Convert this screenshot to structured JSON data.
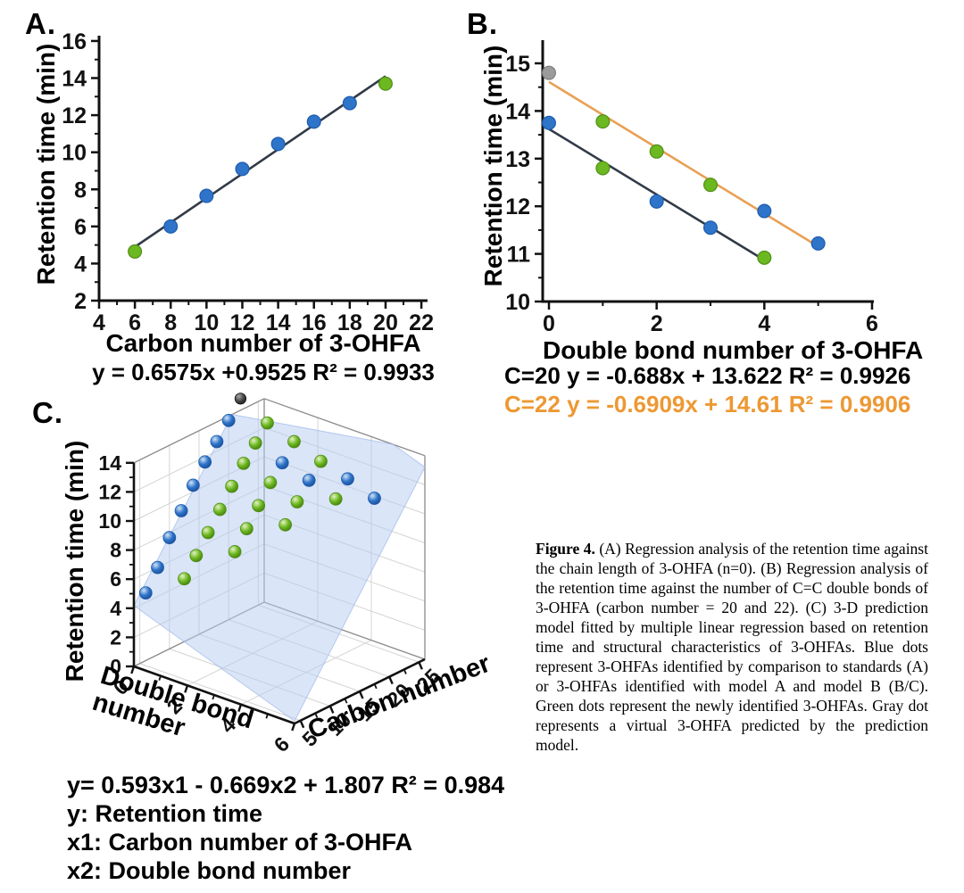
{
  "colors": {
    "blue": "#2E74C9",
    "blue_stroke": "#1D5CAD",
    "green": "#6CB820",
    "green_stroke": "#4F8F15",
    "gray": "#9B9B9B",
    "gray_stroke": "#7F7F7F",
    "orange": "#ED9833",
    "orange_line": "#E9A054",
    "line": "#323A48",
    "axis": "#111111",
    "grid": "#D4D4D4",
    "frame": "#8A8A8A",
    "plane": "#B8CDF2",
    "plane_edge": "#9DB8E8",
    "dark": "#3A3A3A"
  },
  "panels": {
    "a": {
      "label": "A.",
      "ylabel": "Retention time (min)",
      "xlabel": "Carbon number of 3-OHFA",
      "equation": "y = 0.6575x +0.9525   R² = 0.9933"
    },
    "b": {
      "label": "B.",
      "ylabel": "Retention time (min)",
      "xlabel": "Double bond number of 3-OHFA",
      "equation_c20": "C=20 y = -0.688x + 13.622   R² = 0.9926",
      "equation_c22": "C=22 y = -0.6909x + 14.61   R² = 0.9906"
    },
    "c": {
      "label": "C.",
      "zlabel": "Retention time (min)",
      "xlabel_line1": "Double bond",
      "xlabel_line2": "number",
      "ylabel": "Carbon number",
      "equation": "y= 0.593x1 - 0.669x2 + 1.807  R² = 0.984",
      "legend_y": "y: Retention time",
      "legend_x1": "x1: Carbon number of 3-OHFA",
      "legend_x2": "x2: Double bond number"
    }
  },
  "caption": {
    "lead": "Figure 4.",
    "body": " (A) Regression analysis of the retention time against the chain length of 3-OHFA (n=0). (B) Regression analysis of the retention time against the number of C=C double bonds of 3-OHFA (carbon number = 20 and 22). (C) 3-D prediction model fitted by multiple linear regression based on retention time and structural characteristics of 3-OHFAs. Blue dots represent 3-OHFAs identified by comparison to standards (A) or 3-OHFAs identified with model A and model B (B/C). Green dots represent the newly identified 3-OHFAs. Gray dot represents a virtual 3-OHFA predicted by the prediction model."
  },
  "chart_data": [
    {
      "id": "A",
      "type": "scatter",
      "title": "",
      "xlabel": "Carbon number of 3-OHFA",
      "ylabel": "Retention time (min)",
      "xlim": [
        4,
        22
      ],
      "ylim": [
        2,
        16
      ],
      "xticks": [
        4,
        6,
        8,
        10,
        12,
        14,
        16,
        18,
        20,
        22
      ],
      "xticks_minor": [
        5,
        7,
        9,
        11,
        13,
        15,
        17,
        19,
        21
      ],
      "yticks": [
        2,
        4,
        6,
        8,
        10,
        12,
        14,
        16
      ],
      "yticks_minor": [
        3,
        5,
        7,
        9,
        11,
        13,
        15
      ],
      "points": [
        {
          "x": 6,
          "y": 4.65,
          "color": "green"
        },
        {
          "x": 8,
          "y": 6.0,
          "color": "blue"
        },
        {
          "x": 10,
          "y": 7.65,
          "color": "blue"
        },
        {
          "x": 12,
          "y": 9.1,
          "color": "blue"
        },
        {
          "x": 14,
          "y": 10.45,
          "color": "blue"
        },
        {
          "x": 16,
          "y": 11.65,
          "color": "blue"
        },
        {
          "x": 18,
          "y": 12.65,
          "color": "blue"
        },
        {
          "x": 20,
          "y": 13.7,
          "color": "green"
        }
      ],
      "fit_lines": [
        {
          "label": "y = 0.6575x +0.9525",
          "r2": 0.9933,
          "slope": 0.6575,
          "intercept": 0.9525,
          "x_start": 6,
          "x_end": 20,
          "color": "line"
        }
      ]
    },
    {
      "id": "B",
      "type": "scatter",
      "title": "",
      "xlabel": "Double bond number of 3-OHFA",
      "ylabel": "Retention time (min)",
      "xlim": [
        0,
        6
      ],
      "ylim": [
        10,
        15.5
      ],
      "xticks": [
        0,
        2,
        4,
        6
      ],
      "xticks_minor": [
        1,
        3,
        5
      ],
      "yticks": [
        10,
        11,
        12,
        13,
        14,
        15
      ],
      "yticks_minor": [
        10.5,
        11.5,
        12.5,
        13.5,
        14.5
      ],
      "points": [
        {
          "x": 0,
          "y": 14.8,
          "color": "gray"
        },
        {
          "x": 0,
          "y": 13.75,
          "color": "blue"
        },
        {
          "x": 1,
          "y": 13.78,
          "color": "green"
        },
        {
          "x": 1,
          "y": 12.8,
          "color": "green"
        },
        {
          "x": 2,
          "y": 13.15,
          "color": "green"
        },
        {
          "x": 2,
          "y": 12.1,
          "color": "blue"
        },
        {
          "x": 3,
          "y": 12.45,
          "color": "green"
        },
        {
          "x": 3,
          "y": 11.55,
          "color": "blue"
        },
        {
          "x": 4,
          "y": 11.9,
          "color": "blue"
        },
        {
          "x": 4,
          "y": 10.92,
          "color": "green"
        },
        {
          "x": 5,
          "y": 11.22,
          "color": "blue"
        }
      ],
      "fit_lines": [
        {
          "label": "C=20 y = -0.688x + 13.622",
          "r2": 0.9926,
          "slope": -0.688,
          "intercept": 13.622,
          "x_start": 0,
          "x_end": 4.05,
          "color": "line"
        },
        {
          "label": "C=22 y = -0.6909x + 14.61",
          "r2": 0.9906,
          "slope": -0.6909,
          "intercept": 14.61,
          "x_start": 0,
          "x_end": 5.05,
          "color": "orange_line"
        }
      ]
    },
    {
      "id": "C",
      "type": "scatter3d",
      "zlabel": "Retention time (min)",
      "axes": {
        "db": {
          "label": "Double bond number",
          "lim": [
            0,
            6
          ],
          "ticks": [
            0,
            2,
            4,
            6
          ],
          "ticks_minor": [
            1,
            3,
            5
          ]
        },
        "carbon": {
          "label": "Carbon number",
          "lim": [
            4,
            26
          ],
          "ticks": [
            5,
            10,
            15,
            20,
            25
          ],
          "ticks_minor": [
            7.5,
            12.5,
            17.5,
            22.5
          ]
        },
        "rt": {
          "label": "Retention time (min)",
          "lim": [
            0,
            14
          ],
          "ticks": [
            0,
            2,
            4,
            6,
            8,
            10,
            12,
            14
          ],
          "ticks_minor": [
            1,
            3,
            5,
            7,
            9,
            11,
            13
          ]
        }
      },
      "plane": {
        "equation": "y= 0.593x1 - 0.669x2 + 1.807",
        "r2": 0.984,
        "carbon_coef": 0.593,
        "db_coef": -0.669,
        "intercept": 1.807
      },
      "points": [
        {
          "carbon": 6,
          "db": 0,
          "rt": 4.65,
          "color": "blue"
        },
        {
          "carbon": 8,
          "db": 0,
          "rt": 6.0,
          "color": "blue"
        },
        {
          "carbon": 10,
          "db": 0,
          "rt": 7.65,
          "color": "blue"
        },
        {
          "carbon": 12,
          "db": 0,
          "rt": 9.1,
          "color": "blue"
        },
        {
          "carbon": 14,
          "db": 0,
          "rt": 10.45,
          "color": "blue"
        },
        {
          "carbon": 16,
          "db": 0,
          "rt": 11.65,
          "color": "blue"
        },
        {
          "carbon": 18,
          "db": 0,
          "rt": 12.65,
          "color": "blue"
        },
        {
          "carbon": 20,
          "db": 0,
          "rt": 13.7,
          "color": "blue"
        },
        {
          "carbon": 8,
          "db": 1,
          "rt": 5.88,
          "color": "green"
        },
        {
          "carbon": 10,
          "db": 1,
          "rt": 7.07,
          "color": "green"
        },
        {
          "carbon": 12,
          "db": 1,
          "rt": 8.25,
          "color": "green"
        },
        {
          "carbon": 14,
          "db": 1,
          "rt": 9.44,
          "color": "green"
        },
        {
          "carbon": 16,
          "db": 1,
          "rt": 10.63,
          "color": "green"
        },
        {
          "carbon": 18,
          "db": 1,
          "rt": 11.81,
          "color": "green"
        },
        {
          "carbon": 20,
          "db": 1,
          "rt": 12.8,
          "color": "green"
        },
        {
          "carbon": 22,
          "db": 1,
          "rt": 13.78,
          "color": "green"
        },
        {
          "carbon": 12,
          "db": 2,
          "rt": 7.59,
          "color": "green"
        },
        {
          "carbon": 14,
          "db": 2,
          "rt": 8.77,
          "color": "green"
        },
        {
          "carbon": 16,
          "db": 2,
          "rt": 9.96,
          "color": "green"
        },
        {
          "carbon": 18,
          "db": 2,
          "rt": 11.14,
          "color": "green"
        },
        {
          "carbon": 20,
          "db": 2,
          "rt": 12.1,
          "color": "blue"
        },
        {
          "carbon": 22,
          "db": 2,
          "rt": 13.15,
          "color": "green"
        },
        {
          "carbon": 16,
          "db": 3,
          "rt": 9.29,
          "color": "green"
        },
        {
          "carbon": 18,
          "db": 3,
          "rt": 10.47,
          "color": "green"
        },
        {
          "carbon": 20,
          "db": 3,
          "rt": 11.55,
          "color": "blue"
        },
        {
          "carbon": 22,
          "db": 3,
          "rt": 12.45,
          "color": "green"
        },
        {
          "carbon": 20,
          "db": 4,
          "rt": 10.92,
          "color": "green"
        },
        {
          "carbon": 22,
          "db": 4,
          "rt": 11.9,
          "color": "blue"
        },
        {
          "carbon": 22,
          "db": 5,
          "rt": 11.22,
          "color": "blue"
        },
        {
          "carbon": 22,
          "db": 0,
          "rt": 14.8,
          "color": "dark"
        }
      ]
    }
  ]
}
